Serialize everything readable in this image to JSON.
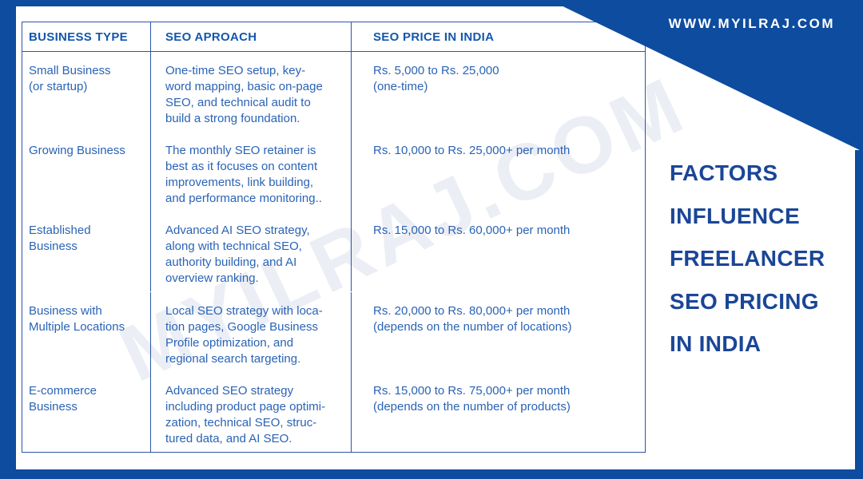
{
  "frame": {
    "site_url": "WWW.MYILRAJ.COM",
    "brand_blue": "#0e4c9f"
  },
  "watermark": "MYILRAJ.COM",
  "side_heading": "FACTORS\nINFLUENCE\nFREELANCER\nSEO PRICING\nIN INDIA",
  "table": {
    "headers": [
      "BUSINESS TYPE",
      "SEO APROACH",
      "SEO PRICE IN INDIA"
    ],
    "rows": [
      {
        "business_type": "Small Business\n(or startup)",
        "approach": "One-time SEO setup, key-\nword mapping, basic on-page\nSEO, and technical audit to\nbuild a strong foundation.",
        "price": "Rs. 5,000 to Rs. 25,000\n(one-time)"
      },
      {
        "business_type": "Growing Business",
        "approach": "The monthly SEO retainer is\nbest as it focuses on content\nimprovements, link building,\nand performance monitoring..",
        "price": "Rs. 10,000 to Rs. 25,000+ per month"
      },
      {
        "business_type": "Established\nBusiness",
        "approach": "Advanced AI SEO strategy,\nalong with technical SEO,\nauthority building, and AI\noverview ranking.",
        "price": "Rs. 15,000 to Rs. 60,000+ per month"
      },
      {
        "business_type": "Business with\nMultiple Locations",
        "approach": "Local SEO strategy with loca-\ntion pages, Google Business\nProfile optimization, and\nregional search targeting.",
        "price": "Rs. 20,000 to Rs. 80,000+ per month\n(depends on the number of locations)"
      },
      {
        "business_type": "E-commerce\nBusiness",
        "approach": "Advanced SEO strategy\nincluding product page optimi-\nzation, technical SEO, struc-\ntured data, and AI SEO.",
        "price": "Rs. 15,000 to Rs. 75,000+ per month\n(depends on the number of products)"
      }
    ]
  }
}
